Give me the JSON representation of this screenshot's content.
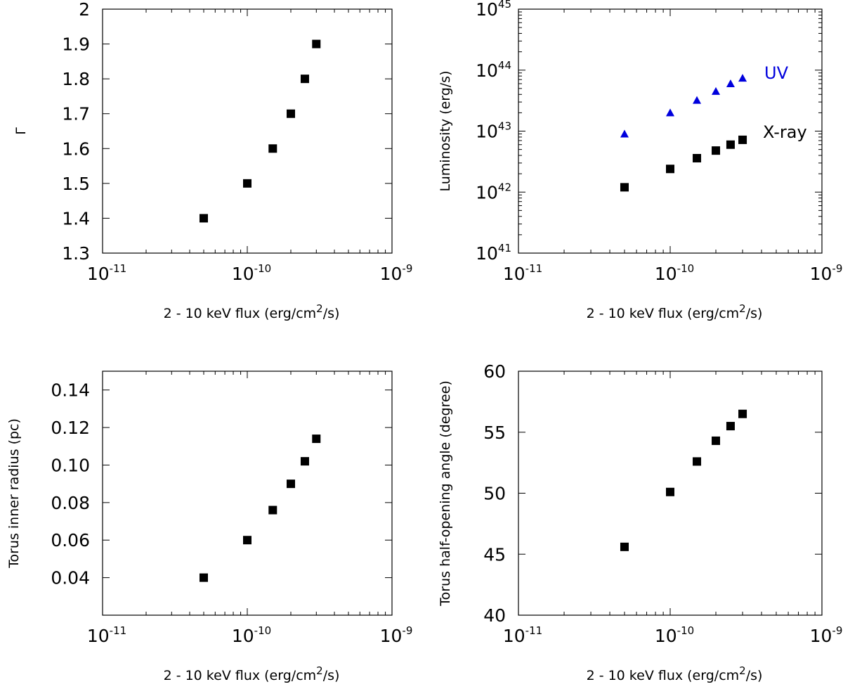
{
  "colors": {
    "xray": "#000000",
    "uv": "#0000dd",
    "axis": "#000000"
  },
  "chart_data": [
    {
      "id": "gamma",
      "type": "scatter",
      "xscale": "log",
      "xlim": [
        1e-11,
        1e-09
      ],
      "ylim": [
        1.3,
        2.0
      ],
      "xticks": [
        {
          "base": "10",
          "exp": "-11"
        },
        {
          "base": "10",
          "exp": "-10"
        },
        {
          "base": "10",
          "exp": "-9"
        }
      ],
      "yticks": [
        "1.3",
        "1.4",
        "1.5",
        "1.6",
        "1.7",
        "1.8",
        "1.9",
        "2"
      ],
      "xlabel": {
        "text": "2 - 10 keV flux (erg/cm",
        "sup": "2",
        "tail": "/s)"
      },
      "ylabel": "Γ",
      "series": [
        {
          "name": "Gamma",
          "marker": "square",
          "color": "#000000",
          "x": [
            5e-11,
            1e-10,
            1.5e-10,
            2e-10,
            2.5e-10,
            3e-10
          ],
          "y": [
            1.4,
            1.5,
            1.6,
            1.7,
            1.8,
            1.9
          ]
        }
      ]
    },
    {
      "id": "luminosity",
      "type": "scatter",
      "xscale": "log",
      "yscale": "log",
      "xlim": [
        1e-11,
        1e-09
      ],
      "ylim": [
        1e+41,
        1e+45
      ],
      "xticks": [
        {
          "base": "10",
          "exp": "-11"
        },
        {
          "base": "10",
          "exp": "-10"
        },
        {
          "base": "10",
          "exp": "-9"
        }
      ],
      "yticks": [
        {
          "base": "10",
          "exp": "41"
        },
        {
          "base": "10",
          "exp": "42"
        },
        {
          "base": "10",
          "exp": "43"
        },
        {
          "base": "10",
          "exp": "44"
        },
        {
          "base": "10",
          "exp": "45"
        }
      ],
      "xlabel": {
        "text": "2 - 10 keV flux (erg/cm",
        "sup": "2",
        "tail": "/s)"
      },
      "ylabel": "Luminosity (erg/s)",
      "series": [
        {
          "name": "UV",
          "marker": "triangle",
          "color": "#0000dd",
          "x": [
            5e-11,
            1e-10,
            1.5e-10,
            2e-10,
            2.5e-10,
            3e-10
          ],
          "y": [
            9e+42,
            2e+43,
            3.2e+43,
            4.5e+43,
            6e+43,
            7.4e+43
          ]
        },
        {
          "name": "X-ray",
          "marker": "square",
          "color": "#000000",
          "x": [
            5e-11,
            1e-10,
            1.5e-10,
            2e-10,
            2.5e-10,
            3e-10
          ],
          "y": [
            1.2e+42,
            2.4e+42,
            3.6e+42,
            4.8e+42,
            6e+42,
            7.2e+42
          ]
        }
      ]
    },
    {
      "id": "torus-radius",
      "type": "scatter",
      "xscale": "log",
      "xlim": [
        1e-11,
        1e-09
      ],
      "ylim": [
        0.02,
        0.15
      ],
      "xticks": [
        {
          "base": "10",
          "exp": "-11"
        },
        {
          "base": "10",
          "exp": "-10"
        },
        {
          "base": "10",
          "exp": "-9"
        }
      ],
      "yticks": [
        "0.04",
        "0.06",
        "0.08",
        "0.10",
        "0.12",
        "0.14"
      ],
      "xlabel": {
        "text": "2 - 10 keV flux (erg/cm",
        "sup": "2",
        "tail": "/s)"
      },
      "ylabel": "Torus inner radius (pc)",
      "series": [
        {
          "name": "Torus inner radius",
          "marker": "square",
          "color": "#000000",
          "x": [
            5e-11,
            1e-10,
            1.5e-10,
            2e-10,
            2.5e-10,
            3e-10
          ],
          "y": [
            0.04,
            0.06,
            0.076,
            0.09,
            0.102,
            0.114
          ]
        }
      ]
    },
    {
      "id": "torus-angle",
      "type": "scatter",
      "xscale": "log",
      "xlim": [
        1e-11,
        1e-09
      ],
      "ylim": [
        40,
        60
      ],
      "xticks": [
        {
          "base": "10",
          "exp": "-11"
        },
        {
          "base": "10",
          "exp": "-10"
        },
        {
          "base": "10",
          "exp": "-9"
        }
      ],
      "yticks": [
        "40",
        "45",
        "50",
        "55",
        "60"
      ],
      "xlabel": {
        "text": "2 - 10 keV flux (erg/cm",
        "sup": "2",
        "tail": "/s)"
      },
      "ylabel": "Torus half-opening angle (degree)",
      "series": [
        {
          "name": "Torus half-opening angle",
          "marker": "square",
          "color": "#000000",
          "x": [
            5e-11,
            1e-10,
            1.5e-10,
            2e-10,
            2.5e-10,
            3e-10
          ],
          "y": [
            45.6,
            50.1,
            52.6,
            54.3,
            55.5,
            56.5
          ]
        }
      ]
    }
  ]
}
